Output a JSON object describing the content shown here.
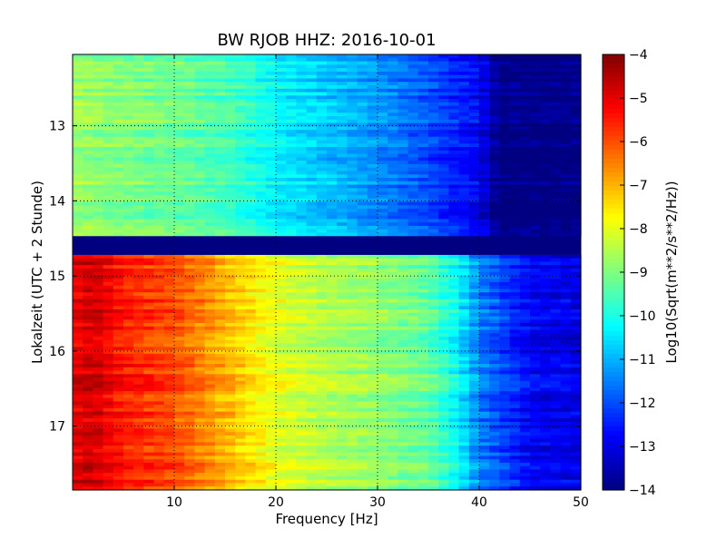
{
  "chart_data": {
    "type": "heatmap",
    "title": "BW RJOB HHZ: 2016-10-01",
    "xlabel": "Frequency [Hz]",
    "ylabel": "Lokalzeit (UTC + 2 Stunde)",
    "xlim": [
      0,
      50
    ],
    "ylim": [
      17.85,
      12.05
    ],
    "y_inverted": true,
    "x_ticks": [
      "10",
      "20",
      "30",
      "40",
      "50"
    ],
    "x_tick_values": [
      10,
      20,
      30,
      40,
      50
    ],
    "y_ticks": [
      "13",
      "14",
      "15",
      "16",
      "17"
    ],
    "y_tick_values": [
      13,
      14,
      15,
      16,
      17
    ],
    "grid": true,
    "colormap": "jet",
    "colorbar": {
      "label": "Log10(Sqrt(m**2/s**2/Hz))",
      "range": [
        -14,
        -4
      ],
      "ticks": [
        "−4",
        "−5",
        "−6",
        "−7",
        "−8",
        "−9",
        "−10",
        "−11",
        "−12",
        "−13",
        "−14"
      ],
      "tick_values": [
        -4,
        -5,
        -6,
        -7,
        -8,
        -9,
        -10,
        -11,
        -12,
        -13,
        -14
      ]
    },
    "data_gap": {
      "from_hour": 14.47,
      "to_hour": 14.72,
      "value": -14
    },
    "regimes": [
      {
        "from_hour": 12.05,
        "to_hour": 14.47,
        "frequency_hz": [
          0,
          5,
          10,
          15,
          20,
          25,
          30,
          35,
          40,
          42,
          45,
          50
        ],
        "level": [
          -8.7,
          -9.0,
          -9.2,
          -9.5,
          -10.3,
          -10.8,
          -11.3,
          -12.0,
          -12.8,
          -14.0,
          -14.0,
          -14.0
        ]
      },
      {
        "from_hour": 14.72,
        "to_hour": 17.85,
        "frequency_hz": [
          0,
          2,
          5,
          10,
          15,
          20,
          25,
          30,
          35,
          38,
          40,
          42,
          45,
          50
        ],
        "level": [
          -5.0,
          -4.8,
          -5.5,
          -6.0,
          -7.0,
          -8.0,
          -8.5,
          -8.8,
          -9.3,
          -10.3,
          -11.5,
          -12.0,
          -12.8,
          -13.0
        ]
      }
    ]
  }
}
